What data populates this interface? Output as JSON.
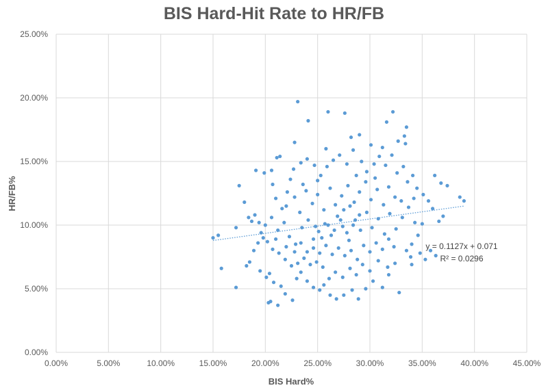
{
  "chart_data": {
    "type": "scatter",
    "title": "BIS Hard-Hit Rate to HR/FB",
    "xlabel": "BIS Hard%",
    "ylabel": "HR/FB%",
    "xlim": [
      0,
      45
    ],
    "ylim": [
      0,
      25
    ],
    "x_ticks": [
      "0.00%",
      "5.00%",
      "10.00%",
      "15.00%",
      "20.00%",
      "25.00%",
      "30.00%",
      "35.00%",
      "40.00%",
      "45.00%"
    ],
    "y_ticks": [
      "0.00%",
      "5.00%",
      "10.00%",
      "15.00%",
      "20.00%",
      "25.00%"
    ],
    "grid": true,
    "marker_color": "#5B9BD5",
    "trendline": {
      "slope": 0.1127,
      "intercept": 0.071,
      "equation": "y = 0.1127x + 0.071",
      "r2": "R² = 0.0296",
      "x_range": [
        15,
        39
      ]
    },
    "points": [
      [
        23.1,
        19.7
      ],
      [
        26.0,
        18.9
      ],
      [
        27.6,
        18.8
      ],
      [
        32.2,
        18.9
      ],
      [
        24.1,
        18.2
      ],
      [
        31.6,
        18.1
      ],
      [
        15.0,
        9.0
      ],
      [
        15.5,
        9.2
      ],
      [
        15.8,
        6.6
      ],
      [
        17.2,
        5.1
      ],
      [
        39.0,
        11.9
      ],
      [
        38.6,
        12.2
      ],
      [
        21.2,
        3.7
      ],
      [
        20.5,
        4.0
      ],
      [
        20.3,
        3.9
      ],
      [
        35.3,
        7.3
      ],
      [
        37.4,
        13.1
      ],
      [
        36.2,
        13.9
      ],
      [
        36.8,
        13.3
      ],
      [
        37.0,
        10.7
      ],
      [
        33.5,
        17.7
      ],
      [
        33.3,
        17.0
      ],
      [
        29.0,
        17.1
      ],
      [
        28.2,
        16.9
      ],
      [
        22.8,
        16.5
      ],
      [
        30.1,
        16.3
      ],
      [
        31.2,
        16.1
      ],
      [
        33.4,
        16.4
      ],
      [
        32.7,
        16.6
      ],
      [
        25.8,
        16.0
      ],
      [
        21.1,
        15.3
      ],
      [
        21.4,
        15.4
      ],
      [
        20.6,
        14.3
      ],
      [
        19.1,
        14.3
      ],
      [
        19.9,
        14.1
      ],
      [
        17.5,
        13.1
      ],
      [
        18.0,
        11.8
      ],
      [
        17.2,
        9.8
      ],
      [
        18.4,
        10.6
      ],
      [
        18.7,
        10.3
      ],
      [
        19.0,
        10.8
      ],
      [
        19.4,
        10.2
      ],
      [
        19.6,
        9.4
      ],
      [
        19.3,
        8.6
      ],
      [
        18.9,
        8.0
      ],
      [
        18.5,
        7.1
      ],
      [
        18.2,
        6.8
      ],
      [
        19.5,
        6.4
      ],
      [
        20.1,
        5.9
      ],
      [
        20.4,
        6.2
      ],
      [
        20.8,
        5.5
      ],
      [
        21.5,
        5.2
      ],
      [
        21.9,
        4.6
      ],
      [
        22.6,
        4.1
      ],
      [
        23.0,
        5.8
      ],
      [
        23.4,
        6.3
      ],
      [
        24.0,
        5.6
      ],
      [
        24.6,
        5.1
      ],
      [
        25.2,
        4.9
      ],
      [
        25.6,
        5.3
      ],
      [
        26.2,
        4.5
      ],
      [
        26.8,
        4.2
      ],
      [
        27.5,
        4.5
      ],
      [
        28.3,
        4.9
      ],
      [
        28.9,
        4.2
      ],
      [
        29.6,
        5.0
      ],
      [
        30.3,
        5.6
      ],
      [
        31.2,
        5.1
      ],
      [
        32.8,
        4.7
      ],
      [
        31.8,
        6.1
      ],
      [
        20.7,
        13.2
      ],
      [
        21.0,
        12.1
      ],
      [
        21.6,
        11.3
      ],
      [
        22.1,
        12.6
      ],
      [
        22.4,
        13.6
      ],
      [
        22.7,
        14.4
      ],
      [
        23.4,
        14.9
      ],
      [
        24.0,
        15.2
      ],
      [
        24.7,
        14.7
      ],
      [
        25.3,
        13.9
      ],
      [
        25.9,
        14.6
      ],
      [
        26.5,
        15.1
      ],
      [
        27.1,
        15.5
      ],
      [
        27.8,
        14.8
      ],
      [
        28.4,
        15.9
      ],
      [
        29.2,
        15.0
      ],
      [
        29.7,
        14.2
      ],
      [
        30.4,
        14.8
      ],
      [
        30.9,
        15.4
      ],
      [
        31.5,
        14.7
      ],
      [
        32.1,
        15.5
      ],
      [
        32.6,
        14.1
      ],
      [
        33.2,
        14.6
      ],
      [
        33.6,
        13.4
      ],
      [
        34.1,
        13.9
      ],
      [
        34.5,
        12.9
      ],
      [
        35.1,
        12.4
      ],
      [
        35.6,
        11.9
      ],
      [
        36.0,
        11.3
      ],
      [
        36.6,
        10.3
      ],
      [
        35.0,
        10.1
      ],
      [
        34.6,
        9.2
      ],
      [
        34.0,
        8.5
      ],
      [
        33.5,
        8.0
      ],
      [
        33.9,
        7.5
      ],
      [
        34.8,
        7.8
      ],
      [
        32.4,
        7.0
      ],
      [
        31.7,
        6.7
      ],
      [
        30.8,
        7.2
      ],
      [
        30.0,
        6.4
      ],
      [
        29.3,
        6.9
      ],
      [
        28.7,
        6.1
      ],
      [
        28.1,
        6.6
      ],
      [
        27.4,
        5.9
      ],
      [
        26.7,
        6.3
      ],
      [
        26.1,
        5.8
      ],
      [
        25.5,
        6.7
      ],
      [
        24.9,
        7.1
      ],
      [
        24.3,
        6.9
      ],
      [
        23.7,
        7.4
      ],
      [
        23.1,
        7.0
      ],
      [
        22.5,
        6.8
      ],
      [
        21.9,
        7.3
      ],
      [
        21.3,
        7.8
      ],
      [
        20.7,
        8.1
      ],
      [
        20.2,
        8.7
      ],
      [
        19.8,
        9.0
      ],
      [
        20.0,
        10.0
      ],
      [
        20.6,
        10.6
      ],
      [
        21.2,
        9.6
      ],
      [
        21.8,
        10.2
      ],
      [
        22.3,
        9.1
      ],
      [
        22.9,
        8.5
      ],
      [
        23.5,
        9.8
      ],
      [
        24.1,
        10.4
      ],
      [
        24.6,
        8.9
      ],
      [
        25.1,
        9.5
      ],
      [
        25.7,
        10.1
      ],
      [
        26.3,
        9.2
      ],
      [
        26.9,
        10.7
      ],
      [
        27.4,
        9.9
      ],
      [
        28.0,
        8.8
      ],
      [
        28.6,
        10.4
      ],
      [
        29.1,
        9.6
      ],
      [
        29.7,
        11.0
      ],
      [
        30.2,
        9.8
      ],
      [
        30.8,
        10.5
      ],
      [
        31.4,
        9.3
      ],
      [
        31.9,
        10.9
      ],
      [
        32.5,
        9.7
      ],
      [
        33.1,
        10.6
      ],
      [
        33.7,
        11.4
      ],
      [
        34.3,
        10.2
      ],
      [
        22.0,
        11.5
      ],
      [
        22.8,
        12.2
      ],
      [
        23.3,
        11.0
      ],
      [
        23.9,
        12.7
      ],
      [
        24.5,
        11.7
      ],
      [
        25.0,
        12.4
      ],
      [
        25.6,
        11.2
      ],
      [
        26.2,
        12.9
      ],
      [
        26.7,
        11.6
      ],
      [
        27.3,
        12.3
      ],
      [
        27.9,
        13.1
      ],
      [
        28.5,
        11.8
      ],
      [
        29.0,
        12.6
      ],
      [
        29.6,
        13.4
      ],
      [
        30.1,
        12.0
      ],
      [
        30.7,
        12.8
      ],
      [
        31.3,
        11.6
      ],
      [
        31.8,
        13.0
      ],
      [
        32.4,
        12.2
      ],
      [
        33.0,
        11.9
      ],
      [
        27.0,
        8.2
      ],
      [
        27.6,
        7.6
      ],
      [
        28.2,
        8.0
      ],
      [
        28.8,
        7.3
      ],
      [
        29.4,
        8.4
      ],
      [
        30.0,
        7.9
      ],
      [
        30.6,
        8.6
      ],
      [
        31.2,
        8.1
      ],
      [
        31.8,
        8.9
      ],
      [
        32.3,
        8.3
      ],
      [
        26.4,
        7.7
      ],
      [
        25.8,
        8.4
      ],
      [
        25.2,
        7.8
      ],
      [
        24.6,
        8.2
      ],
      [
        24.0,
        7.9
      ],
      [
        23.4,
        8.6
      ],
      [
        22.8,
        7.9
      ],
      [
        26.0,
        10.0
      ],
      [
        26.6,
        9.6
      ],
      [
        27.2,
        10.4
      ],
      [
        27.8,
        9.4
      ],
      [
        28.4,
        10.0
      ],
      [
        29.0,
        10.8
      ],
      [
        25.4,
        9.0
      ],
      [
        24.8,
        9.9
      ],
      [
        27.5,
        11.2
      ],
      [
        28.1,
        11.5
      ],
      [
        21.0,
        8.9
      ],
      [
        22.0,
        8.3
      ],
      [
        34.2,
        12.1
      ],
      [
        35.8,
        8.0
      ],
      [
        36.3,
        7.6
      ],
      [
        34.0,
        6.9
      ],
      [
        23.6,
        13.2
      ],
      [
        25.0,
        13.5
      ],
      [
        28.7,
        13.9
      ],
      [
        30.5,
        13.7
      ]
    ]
  }
}
